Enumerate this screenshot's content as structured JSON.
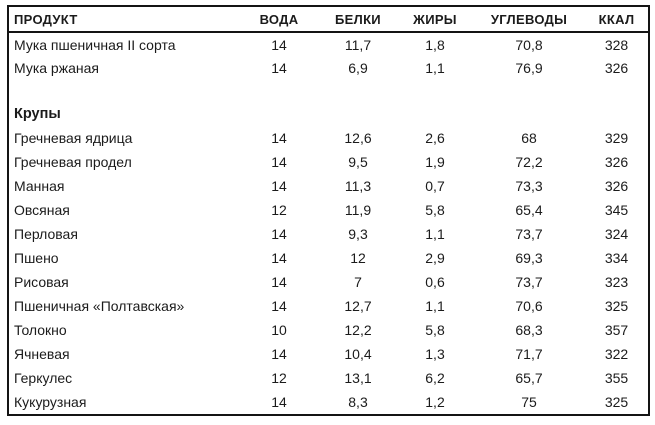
{
  "page": {
    "background": "#ffffff",
    "text_color": "#1b1b1b",
    "border_color": "#141414"
  },
  "chart_data": {
    "type": "table",
    "title": "",
    "columns": [
      "ПРОДУКТ",
      "ВОДА",
      "БЕЛКИ",
      "ЖИРЫ",
      "УГЛЕВОДЫ",
      "ККАЛ"
    ],
    "column_keys": [
      "product",
      "water",
      "proteins",
      "fats",
      "carbohydrates",
      "kcal"
    ],
    "sections": [
      {
        "header": "",
        "rows": [
          [
            "Мука пшеничная II сорта",
            "14",
            "11,7",
            "1,8",
            "70,8",
            "328"
          ],
          [
            "Мука ржаная",
            "14",
            "6,9",
            "1,1",
            "76,9",
            "326"
          ]
        ]
      },
      {
        "header": "Крупы",
        "rows": [
          [
            "Гречневая ядрица",
            "14",
            "12,6",
            "2,6",
            "68",
            "329"
          ],
          [
            "Гречневая продел",
            "14",
            "9,5",
            "1,9",
            "72,2",
            "326"
          ],
          [
            "Манная",
            "14",
            "11,3",
            "0,7",
            "73,3",
            "326"
          ],
          [
            "Овсяная",
            "12",
            "11,9",
            "5,8",
            "65,4",
            "345"
          ],
          [
            "Перловая",
            "14",
            "9,3",
            "1,1",
            "73,7",
            "324"
          ],
          [
            "Пшено",
            "14",
            "12",
            "2,9",
            "69,3",
            "334"
          ],
          [
            "Рисовая",
            "14",
            "7",
            "0,6",
            "73,7",
            "323"
          ],
          [
            "Пшеничная «Полтавская»",
            "14",
            "12,7",
            "1,1",
            "70,6",
            "325"
          ],
          [
            "Толокно",
            "10",
            "12,2",
            "5,8",
            "68,3",
            "357"
          ],
          [
            "Ячневая",
            "14",
            "10,4",
            "1,3",
            "71,7",
            "322"
          ],
          [
            "Геркулес",
            "12",
            "13,1",
            "6,2",
            "65,7",
            "355"
          ],
          [
            "Кукурузная",
            "14",
            "8,3",
            "1,2",
            "75",
            "325"
          ]
        ]
      }
    ]
  }
}
